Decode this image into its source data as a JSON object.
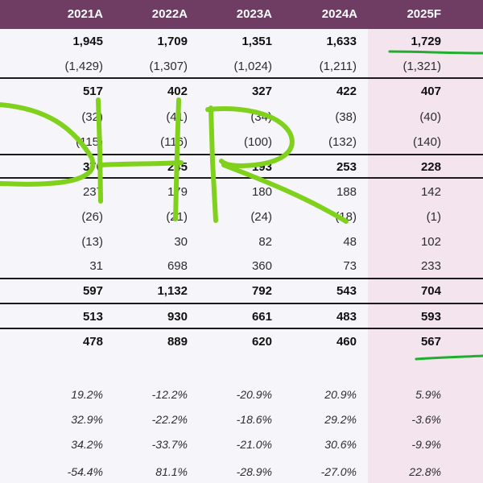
{
  "header": {
    "years": [
      "2021A",
      "2022A",
      "2023A",
      "2024A",
      "2025F"
    ]
  },
  "rows": [
    {
      "style": "bold",
      "values": [
        "1,945",
        "1,709",
        "1,351",
        "1,633",
        "1,729"
      ]
    },
    {
      "style": "normal",
      "values": [
        "(1,429)",
        "(1,307)",
        "(1,024)",
        "(1,211)",
        "(1,321)"
      ]
    },
    {
      "style": "bold",
      "values": [
        "517",
        "402",
        "327",
        "422",
        "407"
      ]
    },
    {
      "style": "normal",
      "values": [
        "(32)",
        "(41)",
        "(34)",
        "(38)",
        "(40)"
      ]
    },
    {
      "style": "normal",
      "values": [
        "(115)",
        "(116)",
        "(100)",
        "(132)",
        "(140)"
      ]
    },
    {
      "style": "bold",
      "values": [
        "370",
        "245",
        "193",
        "253",
        "228"
      ]
    },
    {
      "style": "normal",
      "values": [
        "237",
        "179",
        "180",
        "188",
        "142"
      ]
    },
    {
      "style": "normal",
      "values": [
        "(26)",
        "(21)",
        "(24)",
        "(18)",
        "(1)"
      ]
    },
    {
      "style": "normal",
      "values": [
        "(13)",
        "30",
        "82",
        "48",
        "102"
      ]
    },
    {
      "style": "normal",
      "values": [
        "31",
        "698",
        "360",
        "73",
        "233"
      ]
    },
    {
      "style": "bold",
      "values": [
        "597",
        "1,132",
        "792",
        "543",
        "704"
      ]
    },
    {
      "style": "bold",
      "values": [
        "513",
        "930",
        "661",
        "483",
        "593"
      ]
    },
    {
      "style": "bold",
      "values": [
        "478",
        "889",
        "620",
        "460",
        "567"
      ]
    },
    {
      "style": "italic",
      "values": [
        "19.2%",
        "-12.2%",
        "-20.9%",
        "20.9%",
        "5.9%"
      ]
    },
    {
      "style": "italic",
      "values": [
        "32.9%",
        "-22.2%",
        "-18.6%",
        "29.2%",
        "-3.6%"
      ]
    },
    {
      "style": "italic",
      "values": [
        "34.2%",
        "-33.7%",
        "-21.0%",
        "30.6%",
        "-9.9%"
      ]
    },
    {
      "style": "italic",
      "values": [
        "-54.4%",
        "81.1%",
        "-28.9%",
        "-27.0%",
        "22.8%"
      ]
    }
  ],
  "colors": {
    "header_bg": "#6f3d63",
    "forecast_bg": "#f3e4ee",
    "annotation_green": "#7fd11b",
    "underline_green": "#1fae2e"
  },
  "icons": {
    "handwriting": "hand-drawn-DHR-scribble",
    "underlines": "green-pen-underline"
  }
}
